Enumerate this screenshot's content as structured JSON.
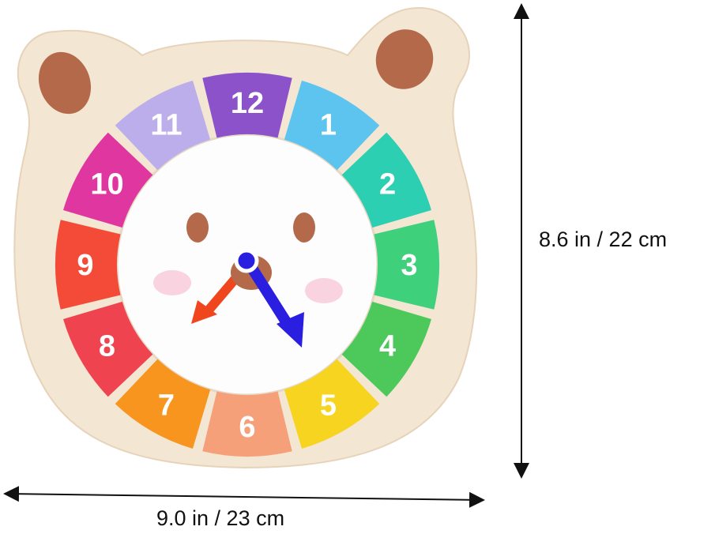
{
  "product": {
    "hour_numbers": [
      {
        "label": "12",
        "color": "#8b52c9"
      },
      {
        "label": "1",
        "color": "#5cc4ef"
      },
      {
        "label": "2",
        "color": "#2ccfb2"
      },
      {
        "label": "3",
        "color": "#3fd07c"
      },
      {
        "label": "4",
        "color": "#4cc95a"
      },
      {
        "label": "5",
        "color": "#f6d41f"
      },
      {
        "label": "6",
        "color": "#f6a07a"
      },
      {
        "label": "7",
        "color": "#f7951f"
      },
      {
        "label": "8",
        "color": "#ef4450"
      },
      {
        "label": "9",
        "color": "#f44b38"
      },
      {
        "label": "10",
        "color": "#df379f"
      },
      {
        "label": "11",
        "color": "#bcaeea"
      }
    ],
    "board_color": "#f3e6d3",
    "ear_color": "#b4694a",
    "hour_hand_color": "#f0461e",
    "minute_hand_color": "#2a1fe0"
  },
  "dimensions": {
    "height_label": "8.6 in / 22 cm",
    "width_label": "9.0 in / 23 cm"
  }
}
